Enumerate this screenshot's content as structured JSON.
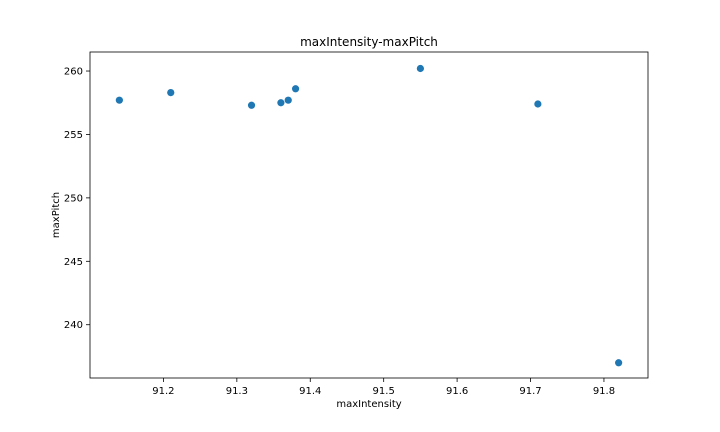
{
  "chart_data": {
    "type": "scatter",
    "title": "maxIntensity-maxPitch",
    "xlabel": "maxIntensity",
    "ylabel": "maxPitch",
    "xlim": [
      91.1,
      91.86
    ],
    "ylim": [
      235.8,
      261.5
    ],
    "xticks": [
      "91.2",
      "91.3",
      "91.4",
      "91.5",
      "91.6",
      "91.7",
      "91.8"
    ],
    "yticks": [
      "240",
      "245",
      "250",
      "255",
      "260"
    ],
    "grid": false,
    "marker_color": "#1f77b4",
    "points": [
      {
        "x": 91.14,
        "y": 257.7
      },
      {
        "x": 91.21,
        "y": 258.3
      },
      {
        "x": 91.32,
        "y": 257.3
      },
      {
        "x": 91.36,
        "y": 257.5
      },
      {
        "x": 91.37,
        "y": 257.7
      },
      {
        "x": 91.38,
        "y": 258.6
      },
      {
        "x": 91.55,
        "y": 260.2
      },
      {
        "x": 91.71,
        "y": 257.4
      },
      {
        "x": 91.82,
        "y": 237.0
      }
    ]
  }
}
